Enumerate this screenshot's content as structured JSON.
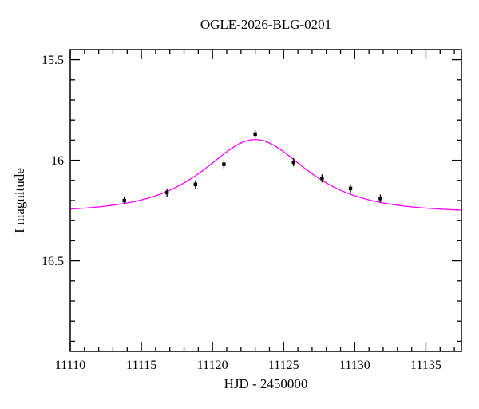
{
  "figure": {
    "title": "OGLE-2026-BLG-0201",
    "xlabel": "HJD - 2450000",
    "ylabel": "I magnitude"
  },
  "chart_data": {
    "type": "scatter",
    "title": "OGLE-2026-BLG-0201",
    "xlabel": "HJD - 2450000",
    "ylabel": "I magnitude",
    "xlim": [
      11110,
      11137.5
    ],
    "ylim_top": 15.45,
    "ylim_bottom": 16.95,
    "y_axis_inverted": true,
    "grid": false,
    "legend": null,
    "x_major_ticks": [
      11110,
      11115,
      11120,
      11125,
      11130,
      11135
    ],
    "x_tick_labels": [
      "11110",
      "11115",
      "11120",
      "11125",
      "11130",
      "11135"
    ],
    "x_minor_step": 1,
    "y_major_ticks": [
      15.5,
      16.0,
      16.5
    ],
    "y_tick_labels": [
      "15.5",
      "16",
      "16.5"
    ],
    "y_minor_step": 0.1,
    "point_color": "#000000",
    "points": [
      {
        "x": 11113.8,
        "y": 16.2,
        "err": 0.02
      },
      {
        "x": 11116.8,
        "y": 16.16,
        "err": 0.02
      },
      {
        "x": 11118.8,
        "y": 16.12,
        "err": 0.02
      },
      {
        "x": 11120.8,
        "y": 16.02,
        "err": 0.02
      },
      {
        "x": 11123.0,
        "y": 15.87,
        "err": 0.02
      },
      {
        "x": 11125.7,
        "y": 16.01,
        "err": 0.02
      },
      {
        "x": 11127.7,
        "y": 16.09,
        "err": 0.02
      },
      {
        "x": 11129.7,
        "y": 16.14,
        "err": 0.02
      },
      {
        "x": 11131.8,
        "y": 16.19,
        "err": 0.02
      }
    ],
    "model": {
      "type": "paczynski",
      "t0": 11123.0,
      "tE": 4.5,
      "u0": 0.93,
      "I_baseline": 16.26,
      "peak_magnitude": 15.9,
      "color": "#ff00ff"
    }
  }
}
